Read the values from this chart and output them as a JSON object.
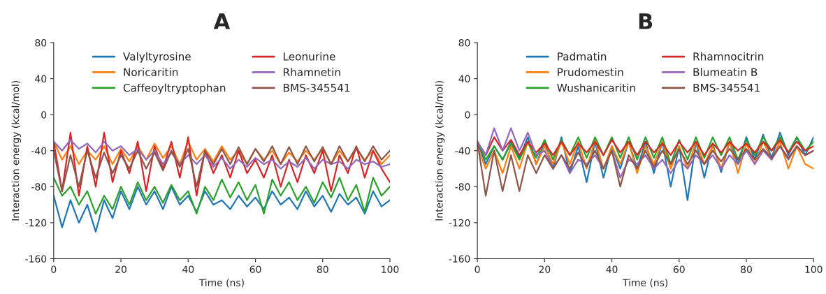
{
  "chart_data": [
    {
      "type": "line",
      "title": "A",
      "xlabel": "Time (ns)",
      "ylabel": "Interaction energy (kcal/mol)",
      "xlim": [
        0,
        100
      ],
      "ylim": [
        -160,
        80
      ],
      "xticks": [
        0,
        20,
        40,
        60,
        80,
        100
      ],
      "yticks": [
        -160,
        -120,
        -80,
        -40,
        0,
        40,
        80
      ],
      "grid": false,
      "legend": "top",
      "marker": "none",
      "line_style": "solid",
      "x": [
        0,
        2.5,
        5,
        7.5,
        10,
        12.5,
        15,
        17.5,
        20,
        22.5,
        25,
        27.5,
        30,
        32.5,
        35,
        37.5,
        40,
        42.5,
        45,
        47.5,
        50,
        52.5,
        55,
        57.5,
        60,
        62.5,
        65,
        67.5,
        70,
        72.5,
        75,
        77.5,
        80,
        82.5,
        85,
        87.5,
        90,
        92.5,
        95,
        97.5,
        100
      ],
      "series": [
        {
          "name": "Valyltyrosine",
          "color": "#1f77b4",
          "values": [
            -90,
            -125,
            -95,
            -120,
            -100,
            -130,
            -95,
            -115,
            -85,
            -105,
            -80,
            -100,
            -85,
            -105,
            -80,
            -100,
            -90,
            -108,
            -85,
            -100,
            -95,
            -105,
            -90,
            -102,
            -92,
            -105,
            -85,
            -100,
            -92,
            -105,
            -85,
            -102,
            -90,
            -108,
            -88,
            -100,
            -92,
            -110,
            -85,
            -102,
            -95
          ]
        },
        {
          "name": "Noricaritin",
          "color": "#ff7f0e",
          "values": [
            -30,
            -50,
            -35,
            -55,
            -40,
            -50,
            -35,
            -55,
            -38,
            -52,
            -35,
            -50,
            -32,
            -48,
            -35,
            -55,
            -30,
            -50,
            -38,
            -52,
            -35,
            -50,
            -40,
            -55,
            -38,
            -50,
            -40,
            -55,
            -42,
            -52,
            -40,
            -50,
            -38,
            -55,
            -40,
            -52,
            -38,
            -50,
            -40,
            -55,
            -45
          ]
        },
        {
          "name": "Caffeoyltryptophan",
          "color": "#2ca02c",
          "values": [
            -70,
            -90,
            -80,
            -100,
            -85,
            -110,
            -90,
            -105,
            -80,
            -100,
            -75,
            -95,
            -80,
            -98,
            -78,
            -95,
            -85,
            -110,
            -80,
            -95,
            -72,
            -92,
            -75,
            -95,
            -78,
            -110,
            -72,
            -90,
            -75,
            -95,
            -80,
            -98,
            -75,
            -92,
            -70,
            -95,
            -78,
            -108,
            -70,
            -90,
            -80
          ]
        },
        {
          "name": "Leonurine",
          "color": "#d62728",
          "values": [
            -30,
            -85,
            -20,
            -90,
            -35,
            -80,
            -20,
            -75,
            -40,
            -65,
            -30,
            -85,
            -35,
            -60,
            -30,
            -70,
            -25,
            -90,
            -40,
            -65,
            -45,
            -70,
            -40,
            -65,
            -50,
            -70,
            -45,
            -80,
            -50,
            -75,
            -45,
            -65,
            -40,
            -85,
            -45,
            -65,
            -35,
            -70,
            -40,
            -60,
            -75
          ]
        },
        {
          "name": "Rhamnetin",
          "color": "#9467bd",
          "values": [
            -30,
            -40,
            -28,
            -38,
            -32,
            -42,
            -30,
            -40,
            -35,
            -45,
            -38,
            -50,
            -40,
            -55,
            -42,
            -55,
            -45,
            -55,
            -45,
            -58,
            -48,
            -60,
            -50,
            -58,
            -48,
            -55,
            -50,
            -60,
            -52,
            -58,
            -48,
            -60,
            -50,
            -55,
            -52,
            -60,
            -50,
            -55,
            -52,
            -58,
            -55
          ]
        },
        {
          "name": "BMS-345541",
          "color": "#8c564b",
          "values": [
            -40,
            -85,
            -45,
            -80,
            -40,
            -70,
            -42,
            -65,
            -45,
            -60,
            -40,
            -60,
            -42,
            -62,
            -40,
            -58,
            -38,
            -80,
            -40,
            -55,
            -38,
            -55,
            -36,
            -55,
            -38,
            -52,
            -35,
            -55,
            -36,
            -55,
            -35,
            -52,
            -36,
            -55,
            -35,
            -52,
            -36,
            -52,
            -35,
            -50,
            -40
          ]
        }
      ]
    },
    {
      "type": "line",
      "title": "B",
      "xlabel": "Time (ns)",
      "ylabel": "Interaction energy (kcal/mol)",
      "xlim": [
        0,
        100
      ],
      "ylim": [
        -160,
        80
      ],
      "xticks": [
        0,
        20,
        40,
        60,
        80,
        100
      ],
      "yticks": [
        -160,
        -120,
        -80,
        -40,
        0,
        40,
        80
      ],
      "grid": false,
      "legend": "top",
      "marker": "none",
      "line_style": "solid",
      "x": [
        0,
        2.5,
        5,
        7.5,
        10,
        12.5,
        15,
        17.5,
        20,
        22.5,
        25,
        27.5,
        30,
        32.5,
        35,
        37.5,
        40,
        42.5,
        45,
        47.5,
        50,
        52.5,
        55,
        57.5,
        60,
        62.5,
        65,
        67.5,
        70,
        72.5,
        75,
        77.5,
        80,
        82.5,
        85,
        87.5,
        90,
        92.5,
        95,
        97.5,
        100
      ],
      "series": [
        {
          "name": "Padmatin",
          "color": "#1f77b4",
          "values": [
            -30,
            -55,
            -35,
            -50,
            -30,
            -48,
            -25,
            -55,
            -30,
            -60,
            -25,
            -65,
            -35,
            -75,
            -30,
            -70,
            -35,
            -60,
            -30,
            -60,
            -30,
            -65,
            -30,
            -80,
            -35,
            -95,
            -30,
            -70,
            -32,
            -64,
            -30,
            -55,
            -25,
            -50,
            -22,
            -48,
            -20,
            -45,
            -25,
            -45,
            -25
          ]
        },
        {
          "name": "Prudomestin",
          "color": "#ff7f0e",
          "values": [
            -35,
            -60,
            -40,
            -65,
            -35,
            -60,
            -30,
            -55,
            -35,
            -55,
            -30,
            -55,
            -30,
            -60,
            -28,
            -60,
            -35,
            -55,
            -30,
            -65,
            -35,
            -55,
            -30,
            -60,
            -35,
            -60,
            -30,
            -55,
            -35,
            -60,
            -30,
            -65,
            -32,
            -55,
            -30,
            -50,
            -30,
            -60,
            -35,
            -55,
            -60
          ]
        },
        {
          "name": "Wushanicaritin",
          "color": "#2ca02c",
          "values": [
            -30,
            -50,
            -35,
            -50,
            -32,
            -50,
            -30,
            -48,
            -28,
            -50,
            -28,
            -45,
            -25,
            -48,
            -25,
            -45,
            -25,
            -48,
            -25,
            -50,
            -25,
            -48,
            -25,
            -55,
            -28,
            -50,
            -25,
            -48,
            -25,
            -45,
            -25,
            -50,
            -28,
            -45,
            -25,
            -40,
            -25,
            -42,
            -25,
            -40,
            -30
          ]
        },
        {
          "name": "Rhamnocitrin",
          "color": "#d62728",
          "values": [
            -30,
            -45,
            -25,
            -40,
            -28,
            -45,
            -30,
            -42,
            -32,
            -45,
            -30,
            -45,
            -32,
            -42,
            -30,
            -45,
            -28,
            -42,
            -30,
            -45,
            -30,
            -42,
            -32,
            -45,
            -30,
            -42,
            -30,
            -45,
            -32,
            -42,
            -30,
            -40,
            -32,
            -42,
            -30,
            -40,
            -28,
            -42,
            -30,
            -40,
            -35
          ]
        },
        {
          "name": "Blumeatin B",
          "color": "#9467bd",
          "values": [
            -30,
            -45,
            -15,
            -40,
            -15,
            -40,
            -20,
            -45,
            -40,
            -60,
            -45,
            -65,
            -50,
            -55,
            -45,
            -60,
            -40,
            -70,
            -50,
            -55,
            -45,
            -60,
            -50,
            -65,
            -50,
            -60,
            -45,
            -55,
            -45,
            -60,
            -45,
            -55,
            -40,
            -55,
            -40,
            -50,
            -35,
            -50,
            -35,
            -45,
            -40
          ]
        },
        {
          "name": "BMS-345541",
          "color": "#8c564b",
          "values": [
            -30,
            -90,
            -40,
            -85,
            -45,
            -85,
            -45,
            -65,
            -45,
            -60,
            -45,
            -60,
            -42,
            -58,
            -40,
            -60,
            -40,
            -80,
            -45,
            -60,
            -40,
            -58,
            -40,
            -55,
            -38,
            -55,
            -40,
            -55,
            -40,
            -52,
            -38,
            -50,
            -38,
            -50,
            -38,
            -48,
            -35,
            -48,
            -35,
            -45,
            -40
          ]
        }
      ]
    }
  ]
}
